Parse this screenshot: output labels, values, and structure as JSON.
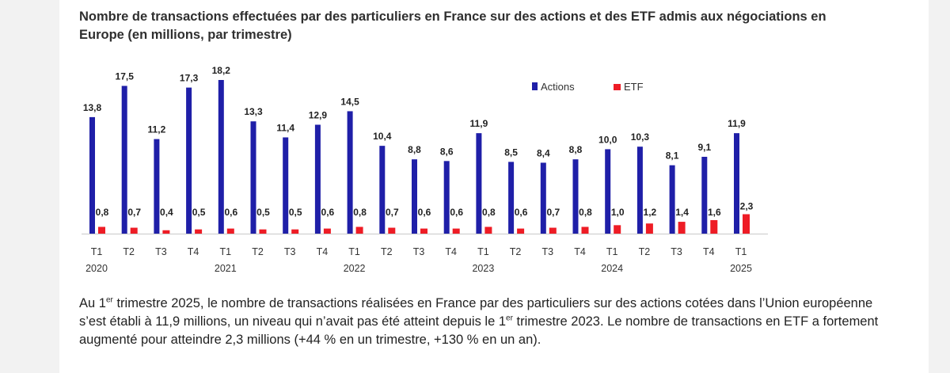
{
  "title": "Nombre de transactions effectuées par des particuliers en France sur des actions et des ETF admis aux négociations en Europe (en millions, par trimestre)",
  "chart_data": {
    "type": "bar",
    "title": "Nombre de transactions effectuées par des particuliers en France sur des actions et des ETF admis aux négociations en Europe (en millions, par trimestre)",
    "categories": [
      "T1",
      "T2",
      "T3",
      "T4",
      "T1",
      "T2",
      "T3",
      "T4",
      "T1",
      "T2",
      "T3",
      "T4",
      "T1",
      "T2",
      "T3",
      "T4",
      "T1",
      "T2",
      "T3",
      "T4",
      "T1"
    ],
    "years": [
      {
        "label": "2020",
        "index": 0
      },
      {
        "label": "2021",
        "index": 4
      },
      {
        "label": "2022",
        "index": 8
      },
      {
        "label": "2023",
        "index": 12
      },
      {
        "label": "2024",
        "index": 16
      },
      {
        "label": "2025",
        "index": 20
      }
    ],
    "series": [
      {
        "name": "Actions",
        "color": "#1f1fa8",
        "values": [
          13.8,
          17.5,
          11.2,
          17.3,
          18.2,
          13.3,
          11.4,
          12.9,
          14.5,
          10.4,
          8.8,
          8.6,
          11.9,
          8.5,
          8.4,
          8.8,
          10.0,
          10.3,
          8.1,
          9.1,
          11.9
        ],
        "labels": [
          "13,8",
          "17,5",
          "11,2",
          "17,3",
          "18,2",
          "13,3",
          "11,4",
          "12,9",
          "14,5",
          "10,4",
          "8,8",
          "8,6",
          "11,9",
          "8,5",
          "8,4",
          "8,8",
          "10,0",
          "10,3",
          "8,1",
          "9,1",
          "11,9"
        ]
      },
      {
        "name": "ETF",
        "color": "#ee1c25",
        "values": [
          0.8,
          0.7,
          0.4,
          0.5,
          0.6,
          0.5,
          0.5,
          0.6,
          0.8,
          0.7,
          0.6,
          0.6,
          0.8,
          0.6,
          0.7,
          0.8,
          1.0,
          1.2,
          1.4,
          1.6,
          2.3
        ],
        "labels": [
          "0,8",
          "0,7",
          "0,4",
          "0,5",
          "0,6",
          "0,5",
          "0,5",
          "0,6",
          "0,8",
          "0,7",
          "0,6",
          "0,6",
          "0,8",
          "0,6",
          "0,7",
          "0,8",
          "1,0",
          "1,2",
          "1,4",
          "1,6",
          "2,3"
        ]
      }
    ],
    "ylim": [
      0,
      18.2
    ],
    "xlabel": "",
    "ylabel": "",
    "legend": "top-right",
    "grid": false
  },
  "paragraph": {
    "p1": "Au 1",
    "sup1": "er",
    "p2": " trimestre 2025, le nombre de transactions réalisées en France par des particuliers sur des actions cotées dans l’Union européenne s’est établi à 11,9 millions, un niveau qui n’avait pas été atteint depuis le 1",
    "sup2": "er",
    "p3": " trimestre 2023. Le nombre de transactions en ETF a fortement augmenté pour atteindre 2,3 millions (+44 % en un trimestre, +130 % en un an)."
  }
}
